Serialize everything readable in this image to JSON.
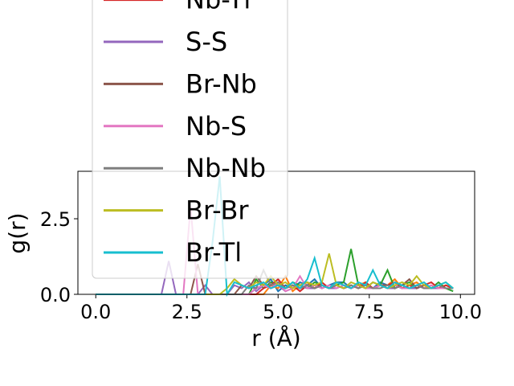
{
  "chart_data": {
    "type": "line",
    "xlabel": "r (Å)",
    "ylabel": "g(r)",
    "xlim": [
      -0.49,
      10.39
    ],
    "ylim": [
      0,
      4.07
    ],
    "xticks": [
      {
        "value": 0,
        "label": "0.0"
      },
      {
        "value": 2.5,
        "label": "2.5"
      },
      {
        "value": 5,
        "label": "5.0"
      },
      {
        "value": 7.5,
        "label": "7.5"
      },
      {
        "value": 10,
        "label": "10.0"
      }
    ],
    "yticks": [
      {
        "value": 0,
        "label": "0.0"
      },
      {
        "value": 2.5,
        "label": "2.5"
      }
    ],
    "x": [
      0,
      0.2,
      0.4,
      0.6,
      0.8,
      1,
      1.2,
      1.4,
      1.6,
      1.8,
      2,
      2.2,
      2.4,
      2.6,
      2.8,
      3,
      3.2,
      3.4,
      3.6,
      3.8,
      4,
      4.2,
      4.4,
      4.6,
      4.8,
      5,
      5.2,
      5.4,
      5.6,
      5.8,
      6,
      6.2,
      6.4,
      6.6,
      6.8,
      7,
      7.2,
      7.4,
      7.6,
      7.8,
      8,
      8.2,
      8.4,
      8.6,
      8.8,
      9,
      9.2,
      9.4,
      9.6,
      9.8
    ],
    "series": [
      {
        "color": "#1f77b4",
        "values": [
          0,
          0,
          0,
          0,
          0,
          0,
          0,
          0,
          0,
          0,
          0,
          0,
          0,
          0,
          0,
          0,
          0,
          0,
          0,
          0,
          0,
          0,
          0.2,
          0.3,
          0.5,
          0.1,
          0.3,
          0.2,
          0.4,
          0.3,
          0.5,
          0.2,
          0.3,
          0.4,
          0.4,
          0.2,
          0.3,
          0.3,
          0.2,
          0.4,
          0.3,
          0.3,
          0.2,
          0.3,
          0.2,
          0.3,
          0.2,
          0.3,
          0.2,
          0.2
        ]
      },
      {
        "color": "#ff7f0e",
        "values": [
          0,
          0,
          0,
          0,
          0,
          0,
          0,
          0,
          0,
          0,
          0,
          0,
          0,
          0,
          0,
          0,
          0,
          0,
          0,
          0,
          0,
          0,
          0,
          0,
          0.3,
          0.2,
          0.6,
          0.1,
          0.3,
          0.4,
          0.2,
          0.3,
          0.2,
          0.4,
          0.3,
          0.2,
          0.3,
          0.4,
          0.2,
          0.3,
          0.3,
          0.5,
          0.2,
          0.3,
          0.4,
          0.2,
          0.3,
          0.2,
          0.3,
          0.2
        ]
      },
      {
        "color": "#2ca02c",
        "values": [
          0,
          0,
          0,
          0,
          0,
          0,
          0,
          0,
          0,
          0,
          0,
          0,
          0,
          0,
          0,
          0,
          0,
          0,
          0,
          0,
          0,
          0,
          0.5,
          0.2,
          0.4,
          0.3,
          0.2,
          0.4,
          0.3,
          0.2,
          0.4,
          0.3,
          0.2,
          0.3,
          0.4,
          1.5,
          0.3,
          0.2,
          0.4,
          0.3,
          0.8,
          0.2,
          0.3,
          0.4,
          0.2,
          0.3,
          0.2,
          0.4,
          0.2,
          0.1
        ]
      },
      {
        "name": "Nb-Tl",
        "color": "#d62728",
        "values": [
          0,
          0,
          0,
          0,
          0,
          0,
          0,
          0,
          0,
          0,
          0,
          0,
          0,
          0,
          0,
          0,
          0,
          0,
          0,
          0,
          0,
          0,
          0,
          0.2,
          0.3,
          0.5,
          0.2,
          0.3,
          0.1,
          0.3,
          0.2,
          0.4,
          0.2,
          0.3,
          0.2,
          0.3,
          0.2,
          0.4,
          0.2,
          0.3,
          0.3,
          0.4,
          0.2,
          0.3,
          0.2,
          0.3,
          0.4,
          0.2,
          0.3,
          0.2
        ]
      },
      {
        "name": "S-S",
        "color": "#9467bd",
        "values": [
          0,
          0,
          0,
          0,
          0,
          0,
          0,
          0,
          0,
          0,
          1.1,
          0,
          0,
          0,
          0,
          0.3,
          0,
          0,
          0,
          0.3,
          0.2,
          0.4,
          0.1,
          0.3,
          0.2,
          0.3,
          0.1,
          0.2,
          0.3,
          0.2,
          0.2,
          0.3,
          0.2,
          0.2,
          0.3,
          0.2,
          0.3,
          0.2,
          0.2,
          0.3,
          0.2,
          0.2,
          0.3,
          0.2,
          0.2,
          0.3,
          0.2,
          0.2,
          0.2,
          0.2
        ]
      },
      {
        "name": "Br-Nb",
        "color": "#8c564b",
        "values": [
          0,
          0,
          0,
          0,
          0,
          0,
          0,
          0,
          0,
          0,
          0,
          0,
          0,
          0,
          1.0,
          0,
          0,
          0,
          0,
          0,
          0.3,
          0.2,
          0.6,
          0.3,
          0.2,
          0.4,
          0.2,
          0.3,
          0.2,
          0.3,
          0.2,
          0.3,
          0.2,
          0.3,
          0.2,
          0.3,
          0.2,
          0.3,
          0.2,
          0.3,
          0.3,
          0.2,
          0.3,
          0.5,
          0.2,
          0.3,
          0.2,
          0.3,
          0.2,
          0.2
        ]
      },
      {
        "name": "Nb-S",
        "color": "#e377c2",
        "values": [
          0,
          0,
          0,
          0,
          0,
          0,
          0,
          0,
          0,
          0,
          0,
          0,
          0,
          2.9,
          0,
          0,
          0,
          0,
          0,
          0,
          0,
          0,
          0.2,
          0.3,
          0.2,
          0.4,
          0.1,
          0.2,
          0.6,
          0.2,
          0.3,
          0.2,
          0.3,
          0.2,
          0.3,
          0.2,
          0.3,
          0.2,
          0.2,
          0.3,
          0.2,
          0.3,
          0.2,
          0.2,
          0.3,
          0.2,
          0.3,
          0.2,
          0.2,
          0.2
        ]
      },
      {
        "name": "Nb-Nb",
        "color": "#7f7f7f",
        "values": [
          0,
          0,
          0,
          0,
          0,
          0,
          0,
          0,
          0,
          0,
          0,
          0,
          0,
          0,
          0,
          0,
          0,
          0,
          0,
          0,
          0,
          0.3,
          0.2,
          0.8,
          0.3,
          0.4,
          0.2,
          0.3,
          0.2,
          0.3,
          0.2,
          0.3,
          0.2,
          0.3,
          0.2,
          0.3,
          0.2,
          0.3,
          0.2,
          0.2,
          0.3,
          0.2,
          0.3,
          0.2,
          0.3,
          0.2,
          0.2,
          0.3,
          0.2,
          0.2
        ]
      },
      {
        "name": "Br-Br",
        "color": "#bcbd22",
        "values": [
          0,
          0,
          0,
          0,
          0,
          0,
          0,
          0,
          0,
          0,
          0,
          0,
          0,
          0,
          0,
          0,
          0,
          0,
          0.2,
          0.5,
          0.3,
          0.2,
          0.4,
          0.3,
          0.6,
          0.3,
          0.4,
          0.2,
          0.3,
          0.4,
          0.3,
          0.4,
          1.35,
          0.3,
          0.2,
          0.4,
          0.3,
          0.2,
          0.4,
          0.3,
          0.2,
          0.3,
          0.4,
          0.3,
          0.6,
          0.3,
          0.2,
          0.3,
          0.4,
          0.2
        ]
      },
      {
        "name": "Br-Tl",
        "color": "#17becf",
        "values": [
          0,
          0,
          0,
          0,
          0,
          0,
          0,
          0,
          0,
          0,
          0,
          0,
          0,
          0,
          0,
          0,
          1.7,
          3.9,
          0,
          0.4,
          0.3,
          0.2,
          0.3,
          0.4,
          0.2,
          0.3,
          0.2,
          0.4,
          0.2,
          0.5,
          1.2,
          0.3,
          0.2,
          0.4,
          0.3,
          0.2,
          0.4,
          0.3,
          0.8,
          0.3,
          0.2,
          0.4,
          0.3,
          0.2,
          0.3,
          0.4,
          0.2,
          0.3,
          0.4,
          0.2
        ]
      }
    ]
  }
}
